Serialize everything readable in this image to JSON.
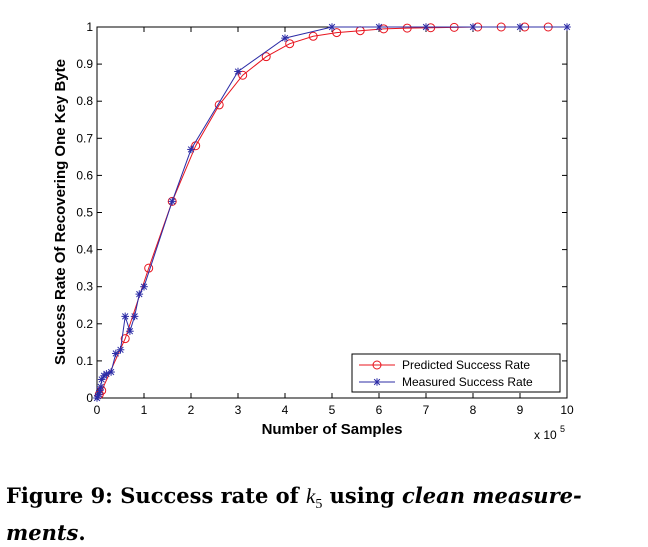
{
  "chart_data": {
    "type": "line",
    "title": "",
    "xlabel": "Number of Samples",
    "ylabel": "Success Rate Of Recovering One Key Byte",
    "x_multiplier_label": "x 10",
    "x_multiplier_exponent": "5",
    "xlim": [
      0,
      10
    ],
    "ylim": [
      0,
      1
    ],
    "xticks": [
      0,
      1,
      2,
      3,
      4,
      5,
      6,
      7,
      8,
      9,
      10
    ],
    "yticks": [
      0,
      0.1,
      0.2,
      0.3,
      0.4,
      0.5,
      0.6,
      0.7,
      0.8,
      0.9,
      1
    ],
    "ytick_labels": [
      "0",
      "0.1",
      "0.2",
      "0.3",
      "0.4",
      "0.5",
      "0.6",
      "0.7",
      "0.8",
      "0.9",
      "1"
    ],
    "grid": false,
    "legend_position": "bottom-right",
    "series": [
      {
        "name": "Predicted Success Rate",
        "color": "#e8141e",
        "marker": "circle",
        "x": [
          0.05,
          0.1,
          0.6,
          1.1,
          1.6,
          2.1,
          2.6,
          3.1,
          3.6,
          4.1,
          4.6,
          5.1,
          5.6,
          6.1,
          6.6,
          7.1,
          7.6,
          8.1,
          8.6,
          9.1,
          9.6
        ],
        "y": [
          0.01,
          0.02,
          0.16,
          0.35,
          0.53,
          0.68,
          0.79,
          0.87,
          0.92,
          0.955,
          0.975,
          0.985,
          0.99,
          0.995,
          0.997,
          0.998,
          0.999,
          1.0,
          1.0,
          1.0,
          1.0
        ]
      },
      {
        "name": "Measured Success Rate",
        "color": "#2c2ca6",
        "marker": "star",
        "x": [
          0,
          0.02,
          0.04,
          0.06,
          0.08,
          0.1,
          0.15,
          0.2,
          0.3,
          0.4,
          0.5,
          0.6,
          0.7,
          0.8,
          0.9,
          1.0,
          1.6,
          2.0,
          3.0,
          4.0,
          5.0,
          6.0,
          7.0,
          8.0,
          9.0,
          10.0
        ],
        "y": [
          0,
          0.005,
          0.01,
          0.02,
          0.03,
          0.05,
          0.06,
          0.065,
          0.07,
          0.12,
          0.13,
          0.22,
          0.18,
          0.22,
          0.28,
          0.3,
          0.53,
          0.67,
          0.88,
          0.97,
          1.0,
          1.0,
          1.0,
          1.0,
          1.0,
          1.0
        ]
      }
    ]
  },
  "caption": {
    "label": "Figure 9:",
    "text_before": "Success rate of",
    "math_var": "k",
    "math_sub": "5",
    "text_mid": "using",
    "text_emph_line1": "clean measure-",
    "text_emph_line2": "ments",
    "text_end": "."
  }
}
